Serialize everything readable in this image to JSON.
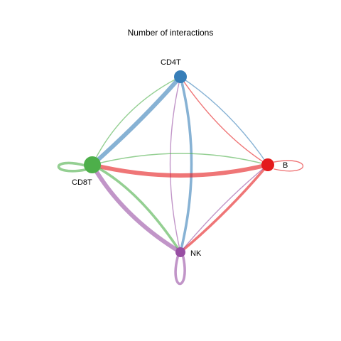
{
  "title": "Number of interactions",
  "nodes": [
    {
      "id": "CD4T",
      "label": "CD4T",
      "color": "#377EB8"
    },
    {
      "id": "B",
      "label": "B",
      "color": "#E41A1C"
    },
    {
      "id": "CD8T",
      "label": "CD8T",
      "color": "#4DAF4A"
    },
    {
      "id": "NK",
      "label": "NK",
      "color": "#984EA3"
    }
  ],
  "edges": [
    {
      "from": "CD4T",
      "to": "CD8T",
      "weight": "thick"
    },
    {
      "from": "CD4T",
      "to": "NK",
      "weight": "medium"
    },
    {
      "from": "CD4T",
      "to": "B",
      "weight": "thin"
    },
    {
      "from": "B",
      "to": "CD4T",
      "weight": "thin"
    },
    {
      "from": "CD8T",
      "to": "CD4T",
      "weight": "thin"
    },
    {
      "from": "NK",
      "to": "CD4T",
      "weight": "thin"
    },
    {
      "from": "B",
      "to": "CD8T",
      "weight": "thick"
    },
    {
      "from": "CD8T",
      "to": "B",
      "weight": "thin"
    },
    {
      "from": "B",
      "to": "NK",
      "weight": "medium"
    },
    {
      "from": "NK",
      "to": "B",
      "weight": "thin"
    },
    {
      "from": "CD8T",
      "to": "NK",
      "weight": "medium"
    },
    {
      "from": "NK",
      "to": "CD8T",
      "weight": "thick"
    },
    {
      "from": "CD8T",
      "to": "CD8T",
      "weight": "medium"
    },
    {
      "from": "B",
      "to": "B",
      "weight": "thin"
    },
    {
      "from": "NK",
      "to": "NK",
      "weight": "medium"
    }
  ]
}
